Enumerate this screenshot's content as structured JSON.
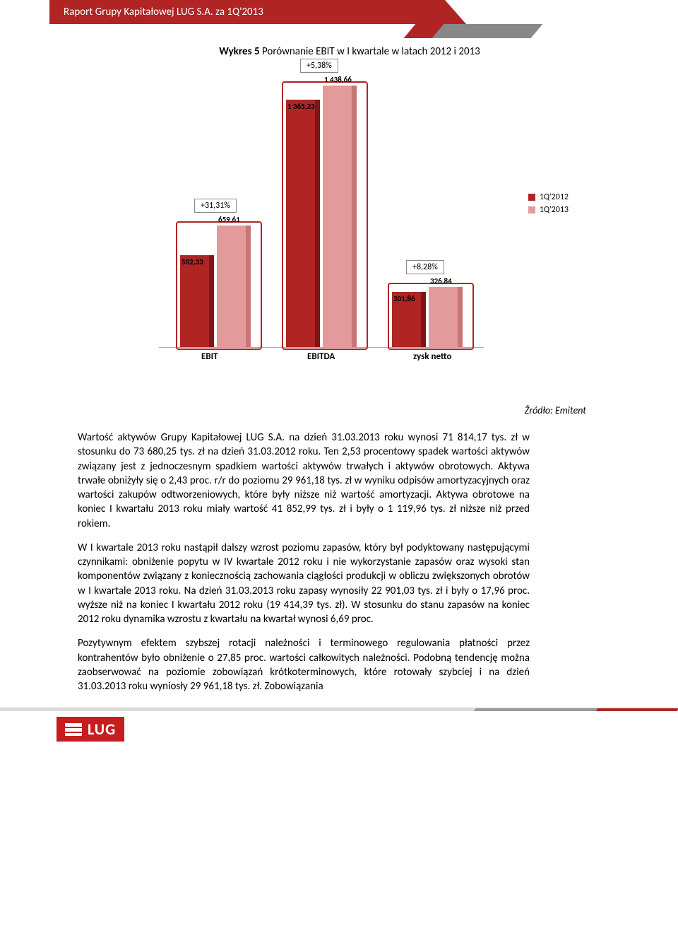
{
  "header": {
    "title": "Raport Grupy Kapitałowej LUG S.A. za 1Q'2013"
  },
  "chart": {
    "title_prefix": "Wykres 5",
    "title_rest": " Porównanie EBIT w I kwartale w latach 2012 i 2013",
    "type": "bar",
    "max_value": 1500,
    "categories": [
      "EBIT",
      "EBITDA",
      "zysk netto"
    ],
    "series": [
      {
        "name": "1Q'2012",
        "color": "#b02424",
        "color_shadow": "#7a1818"
      },
      {
        "name": "1Q'2013",
        "color": "#e39a9a",
        "color_shadow": "#c77575"
      }
    ],
    "groups": [
      {
        "category": "EBIT",
        "pct": "+31,31%",
        "v2012": "502,33",
        "v2013": "659,61",
        "h2012": 130,
        "h2013": 172
      },
      {
        "category": "EBITDA",
        "pct": "+5,38%",
        "v2012": "1 365,23",
        "v2013": "1 438,66",
        "h2012": 350,
        "h2013": 370
      },
      {
        "category": "zysk netto",
        "pct": "+8,28%",
        "v2012": "301,86",
        "v2013": "326,84",
        "h2012": 78,
        "h2013": 85
      }
    ],
    "legend": [
      "1Q'2012",
      "1Q'2013"
    ]
  },
  "source_label": "Źródło: Emitent",
  "paragraphs": [
    "Wartość aktywów Grupy Kapitałowej LUG S.A. na dzień 31.03.2013 roku wynosi 71 814,17 tys. zł w stosunku do 73 680,25 tys. zł na dzień 31.03.2012 roku. Ten 2,53 procentowy spadek wartości aktywów związany jest z jednoczesnym spadkiem wartości aktywów trwałych i aktywów obrotowych. Aktywa trwałe obniżyły się o 2,43 proc. r/r do poziomu 29 961,18 tys. zł w wyniku odpisów amortyzacyjnych oraz wartości zakupów odtworzeniowych, które były niższe niż wartość amortyzacji. Aktywa obrotowe na koniec I kwartału 2013 roku  miały wartość 41 852,99 tys. zł i były o 1 119,96 tys. zł niższe niż przed rokiem.",
    "W I kwartale 2013 roku nastąpił dalszy wzrost poziomu zapasów, który był podyktowany następującymi czynnikami: obniżenie popytu w IV kwartale 2012 roku i nie wykorzystanie zapasów oraz wysoki stan komponentów związany z koniecznością zachowania ciągłości produkcji w obliczu zwiększonych obrotów w I kwartale 2013 roku. Na dzień 31.03.2013 roku zapasy wynosiły 22 901,03 tys. zł i były o 17,96 proc. wyższe niż na koniec I kwartału 2012 roku (19 414,39 tys. zł). W stosunku do stanu zapasów na koniec 2012 roku dynamika wzrostu z kwartału na kwartał wynosi 6,69 proc.",
    "Pozytywnym efektem szybszej rotacji należności i terminowego regulowania płatności przez kontrahentów było obniżenie o 27,85 proc. wartości całkowitych należności. Podobną tendencję można zaobserwować na poziomie zobowiązań krótkoterminowych, które rotowały szybciej i na dzień 31.03.2013 roku wyniosły 29 961,18 tys. zł. Zobowiązania"
  ],
  "footer": {
    "logo_text": "LUG"
  }
}
